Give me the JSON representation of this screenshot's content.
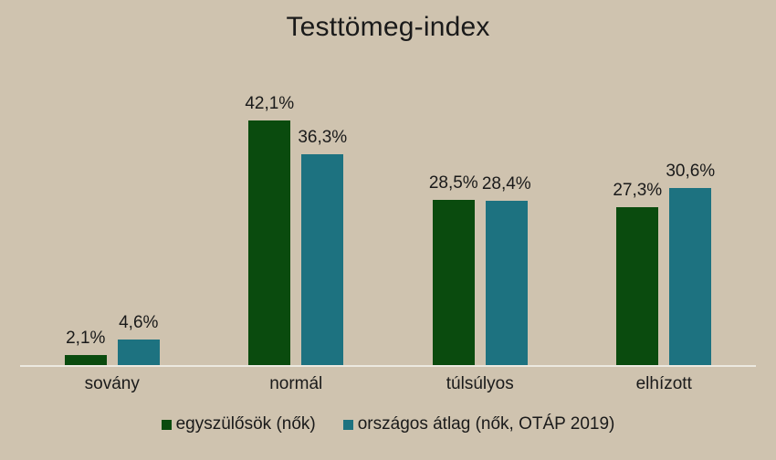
{
  "chart_data": {
    "type": "bar",
    "title": "Testtömeg-index",
    "categories": [
      "sovány",
      "normál",
      "túlsúlyos",
      "elhízott"
    ],
    "series": [
      {
        "name": "egyszülősök (nők)",
        "color": "#0a4b0e",
        "values": [
          2.1,
          42.1,
          28.5,
          27.3
        ],
        "labels": [
          "2,1%",
          "42,1%",
          "28,5%",
          "27,3%"
        ]
      },
      {
        "name": "országos átlag (nők, OTÁP 2019)",
        "color": "#1d7280",
        "values": [
          4.6,
          36.3,
          28.4,
          30.6
        ],
        "labels": [
          "4,6%",
          "36,3%",
          "28,4%",
          "30,6%"
        ]
      }
    ],
    "xlabel": "",
    "ylabel": "",
    "ylim": [
      0,
      50.6
    ],
    "grid": false,
    "legend_position": "bottom",
    "value_suffix": "%"
  },
  "colors": {
    "background": "#cfc3af",
    "axis_line": "#ece9e0",
    "text": "#1a1a1a"
  }
}
